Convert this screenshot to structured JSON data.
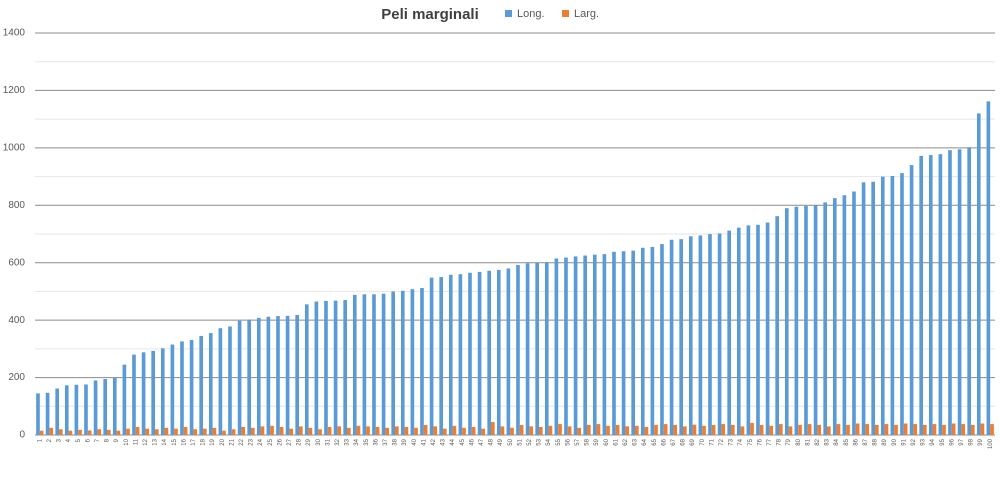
{
  "chart_data": {
    "type": "bar",
    "title": "Peli marginali",
    "categories": [
      "1",
      "2",
      "3",
      "4",
      "5",
      "6",
      "7",
      "8",
      "9",
      "10",
      "11",
      "12",
      "13",
      "14",
      "15",
      "16",
      "17",
      "18",
      "19",
      "20",
      "21",
      "22",
      "23",
      "24",
      "25",
      "26",
      "27",
      "28",
      "29",
      "30",
      "31",
      "32",
      "33",
      "34",
      "35",
      "36",
      "37",
      "38",
      "39",
      "40",
      "41",
      "42",
      "43",
      "44",
      "45",
      "46",
      "47",
      "48",
      "49",
      "50",
      "51",
      "52",
      "53",
      "54",
      "55",
      "56",
      "57",
      "58",
      "59",
      "60",
      "61",
      "62",
      "63",
      "64",
      "65",
      "66",
      "67",
      "68",
      "69",
      "70",
      "71",
      "72",
      "73",
      "74",
      "75",
      "76",
      "77",
      "78",
      "79",
      "80",
      "81",
      "82",
      "83",
      "84",
      "85",
      "86",
      "87",
      "88",
      "89",
      "90",
      "91",
      "92",
      "93",
      "94",
      "95",
      "96",
      "97",
      "98",
      "99",
      "100"
    ],
    "series": [
      {
        "name": "Long.",
        "color": "#5b9bd5",
        "values": [
          145,
          147,
          162,
          173,
          175,
          176,
          190,
          195,
          200,
          245,
          280,
          288,
          293,
          302,
          315,
          326,
          331,
          345,
          355,
          372,
          378,
          398,
          402,
          408,
          412,
          414,
          415,
          418,
          455,
          465,
          467,
          468,
          470,
          488,
          490,
          490,
          492,
          500,
          502,
          508,
          512,
          548,
          550,
          558,
          560,
          565,
          568,
          572,
          575,
          580,
          592,
          598,
          600,
          602,
          615,
          618,
          622,
          625,
          628,
          630,
          638,
          640,
          642,
          652,
          655,
          665,
          680,
          682,
          692,
          695,
          700,
          702,
          712,
          722,
          730,
          732,
          740,
          762,
          790,
          795,
          798,
          800,
          810,
          825,
          835,
          848,
          880,
          882,
          900,
          902,
          912,
          940,
          972,
          975,
          978,
          992,
          995,
          1002,
          1120,
          1162
        ]
      },
      {
        "name": "Larg.",
        "color": "#ed7d31",
        "values": [
          15,
          25,
          20,
          15,
          18,
          16,
          20,
          18,
          15,
          22,
          28,
          22,
          20,
          25,
          22,
          28,
          20,
          22,
          25,
          15,
          20,
          28,
          25,
          30,
          32,
          28,
          22,
          30,
          25,
          20,
          28,
          30,
          25,
          32,
          30,
          28,
          25,
          30,
          28,
          25,
          35,
          30,
          22,
          32,
          25,
          28,
          22,
          45,
          30,
          25,
          35,
          30,
          28,
          32,
          38,
          30,
          25,
          35,
          38,
          32,
          35,
          30,
          32,
          28,
          35,
          38,
          35,
          30,
          36,
          32,
          35,
          38,
          35,
          30,
          42,
          35,
          32,
          38,
          30,
          35,
          38,
          35,
          30,
          38,
          35,
          40,
          38,
          35,
          38,
          35,
          40,
          38,
          35,
          38,
          35,
          40,
          38,
          35,
          40,
          38
        ]
      }
    ],
    "ylim": [
      0,
      1400
    ],
    "yticks": [
      0,
      200,
      400,
      600,
      800,
      1000,
      1200,
      1400
    ],
    "yminor": [
      100,
      300,
      500,
      700,
      900,
      1100,
      1300
    ],
    "grid": true,
    "legend": "top"
  }
}
